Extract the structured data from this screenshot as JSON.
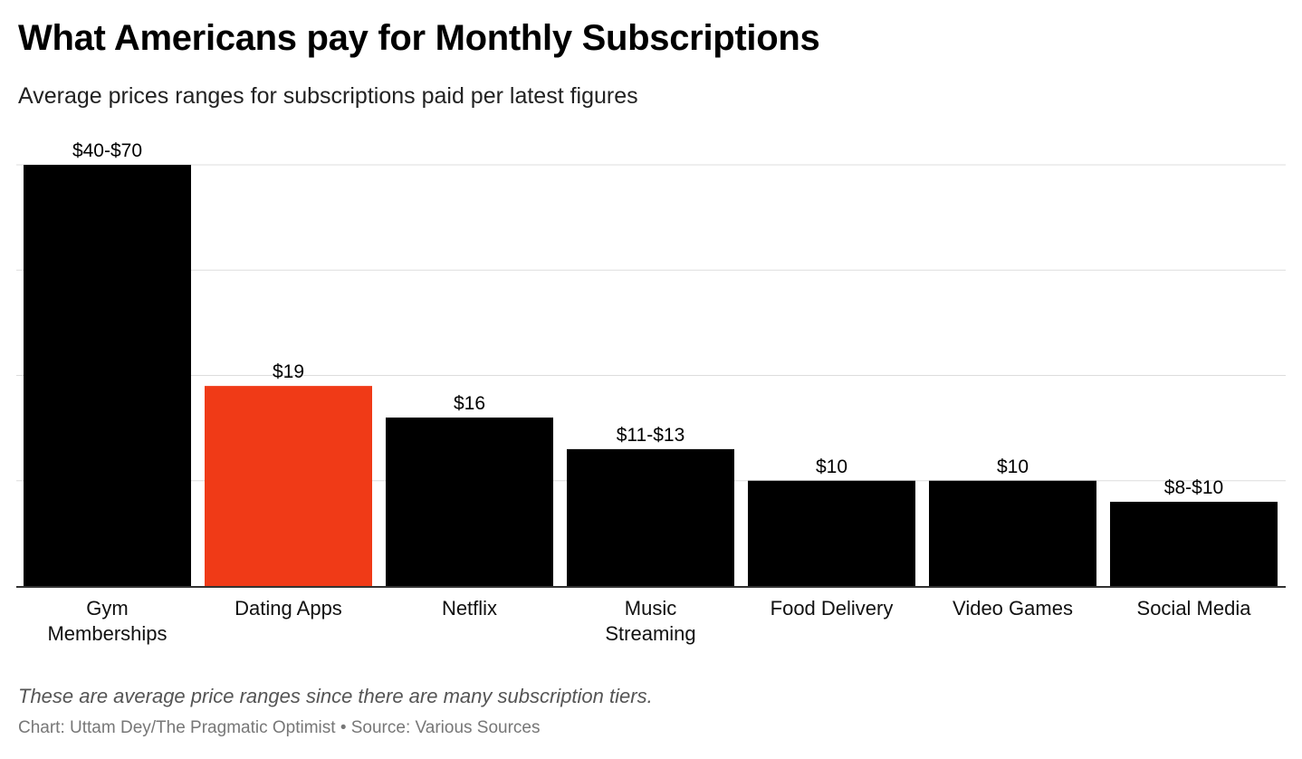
{
  "title": "What Americans pay for Monthly Subscriptions",
  "subtitle": "Average prices ranges for subscriptions paid per latest figures",
  "note": "These are average price ranges since there are many subscription tiers.",
  "credit": "Chart: Uttam Dey/The Pragmatic Optimist • Source: Various Sources",
  "colors": {
    "bar": "#000000",
    "highlight": "#f03a17",
    "grid": "#dddddd",
    "axis": "#333333"
  },
  "chart_data": {
    "type": "bar",
    "categories": [
      [
        "Gym",
        "Memberships"
      ],
      [
        "Dating Apps"
      ],
      [
        "Netflix"
      ],
      [
        "Music",
        "Streaming"
      ],
      [
        "Food Delivery"
      ],
      [
        "Video Games"
      ],
      [
        "Social Media"
      ]
    ],
    "values": [
      40,
      19,
      16,
      13,
      10,
      10,
      8
    ],
    "value_labels": [
      "$40-$70",
      "$19",
      "$16",
      "$11-$13",
      "$10",
      "$10",
      "$8-$10"
    ],
    "highlight_index": 1,
    "ylim": [
      0,
      40
    ],
    "gridlines": [
      10,
      20,
      30,
      40
    ],
    "grid": true,
    "legend": "none",
    "xlabel": "",
    "ylabel": ""
  }
}
